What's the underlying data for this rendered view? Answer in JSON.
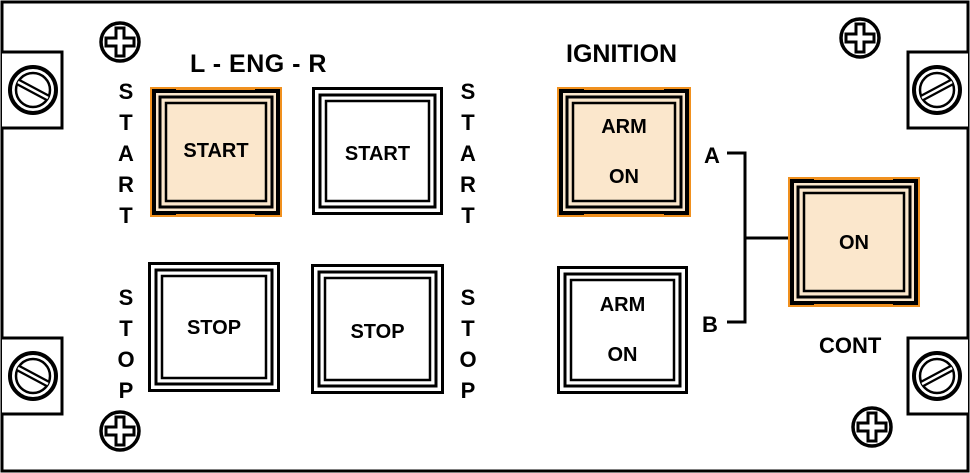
{
  "panel": {
    "engine_title": "L - ENG - R",
    "ignition_title": "IGNITION",
    "cont_label": "CONT",
    "branch_a": "A",
    "branch_b": "B"
  },
  "side_labels": {
    "left_start": "S\nT\nA\nR\nT",
    "right_start": "S\nT\nA\nR\nT",
    "left_stop": "S\nT\nO\nP",
    "right_stop": "S\nT\nO\nP"
  },
  "buttons": {
    "l_start": {
      "label": "START",
      "illuminated": true
    },
    "r_start": {
      "label": "START",
      "illuminated": false
    },
    "l_stop": {
      "label": "STOP",
      "illuminated": false
    },
    "r_stop": {
      "label": "STOP",
      "illuminated": false
    },
    "ign_a": {
      "line1": "ARM",
      "line2": "ON",
      "illuminated": true
    },
    "ign_b": {
      "line1": "ARM",
      "line2": "ON",
      "illuminated": false
    },
    "cont": {
      "label": "ON",
      "illuminated": true
    }
  },
  "colors": {
    "lit_face": "#fbe7cc",
    "lit_edge": "#f0901e",
    "unlit_face": "#ffffff",
    "frame": "#000000"
  }
}
